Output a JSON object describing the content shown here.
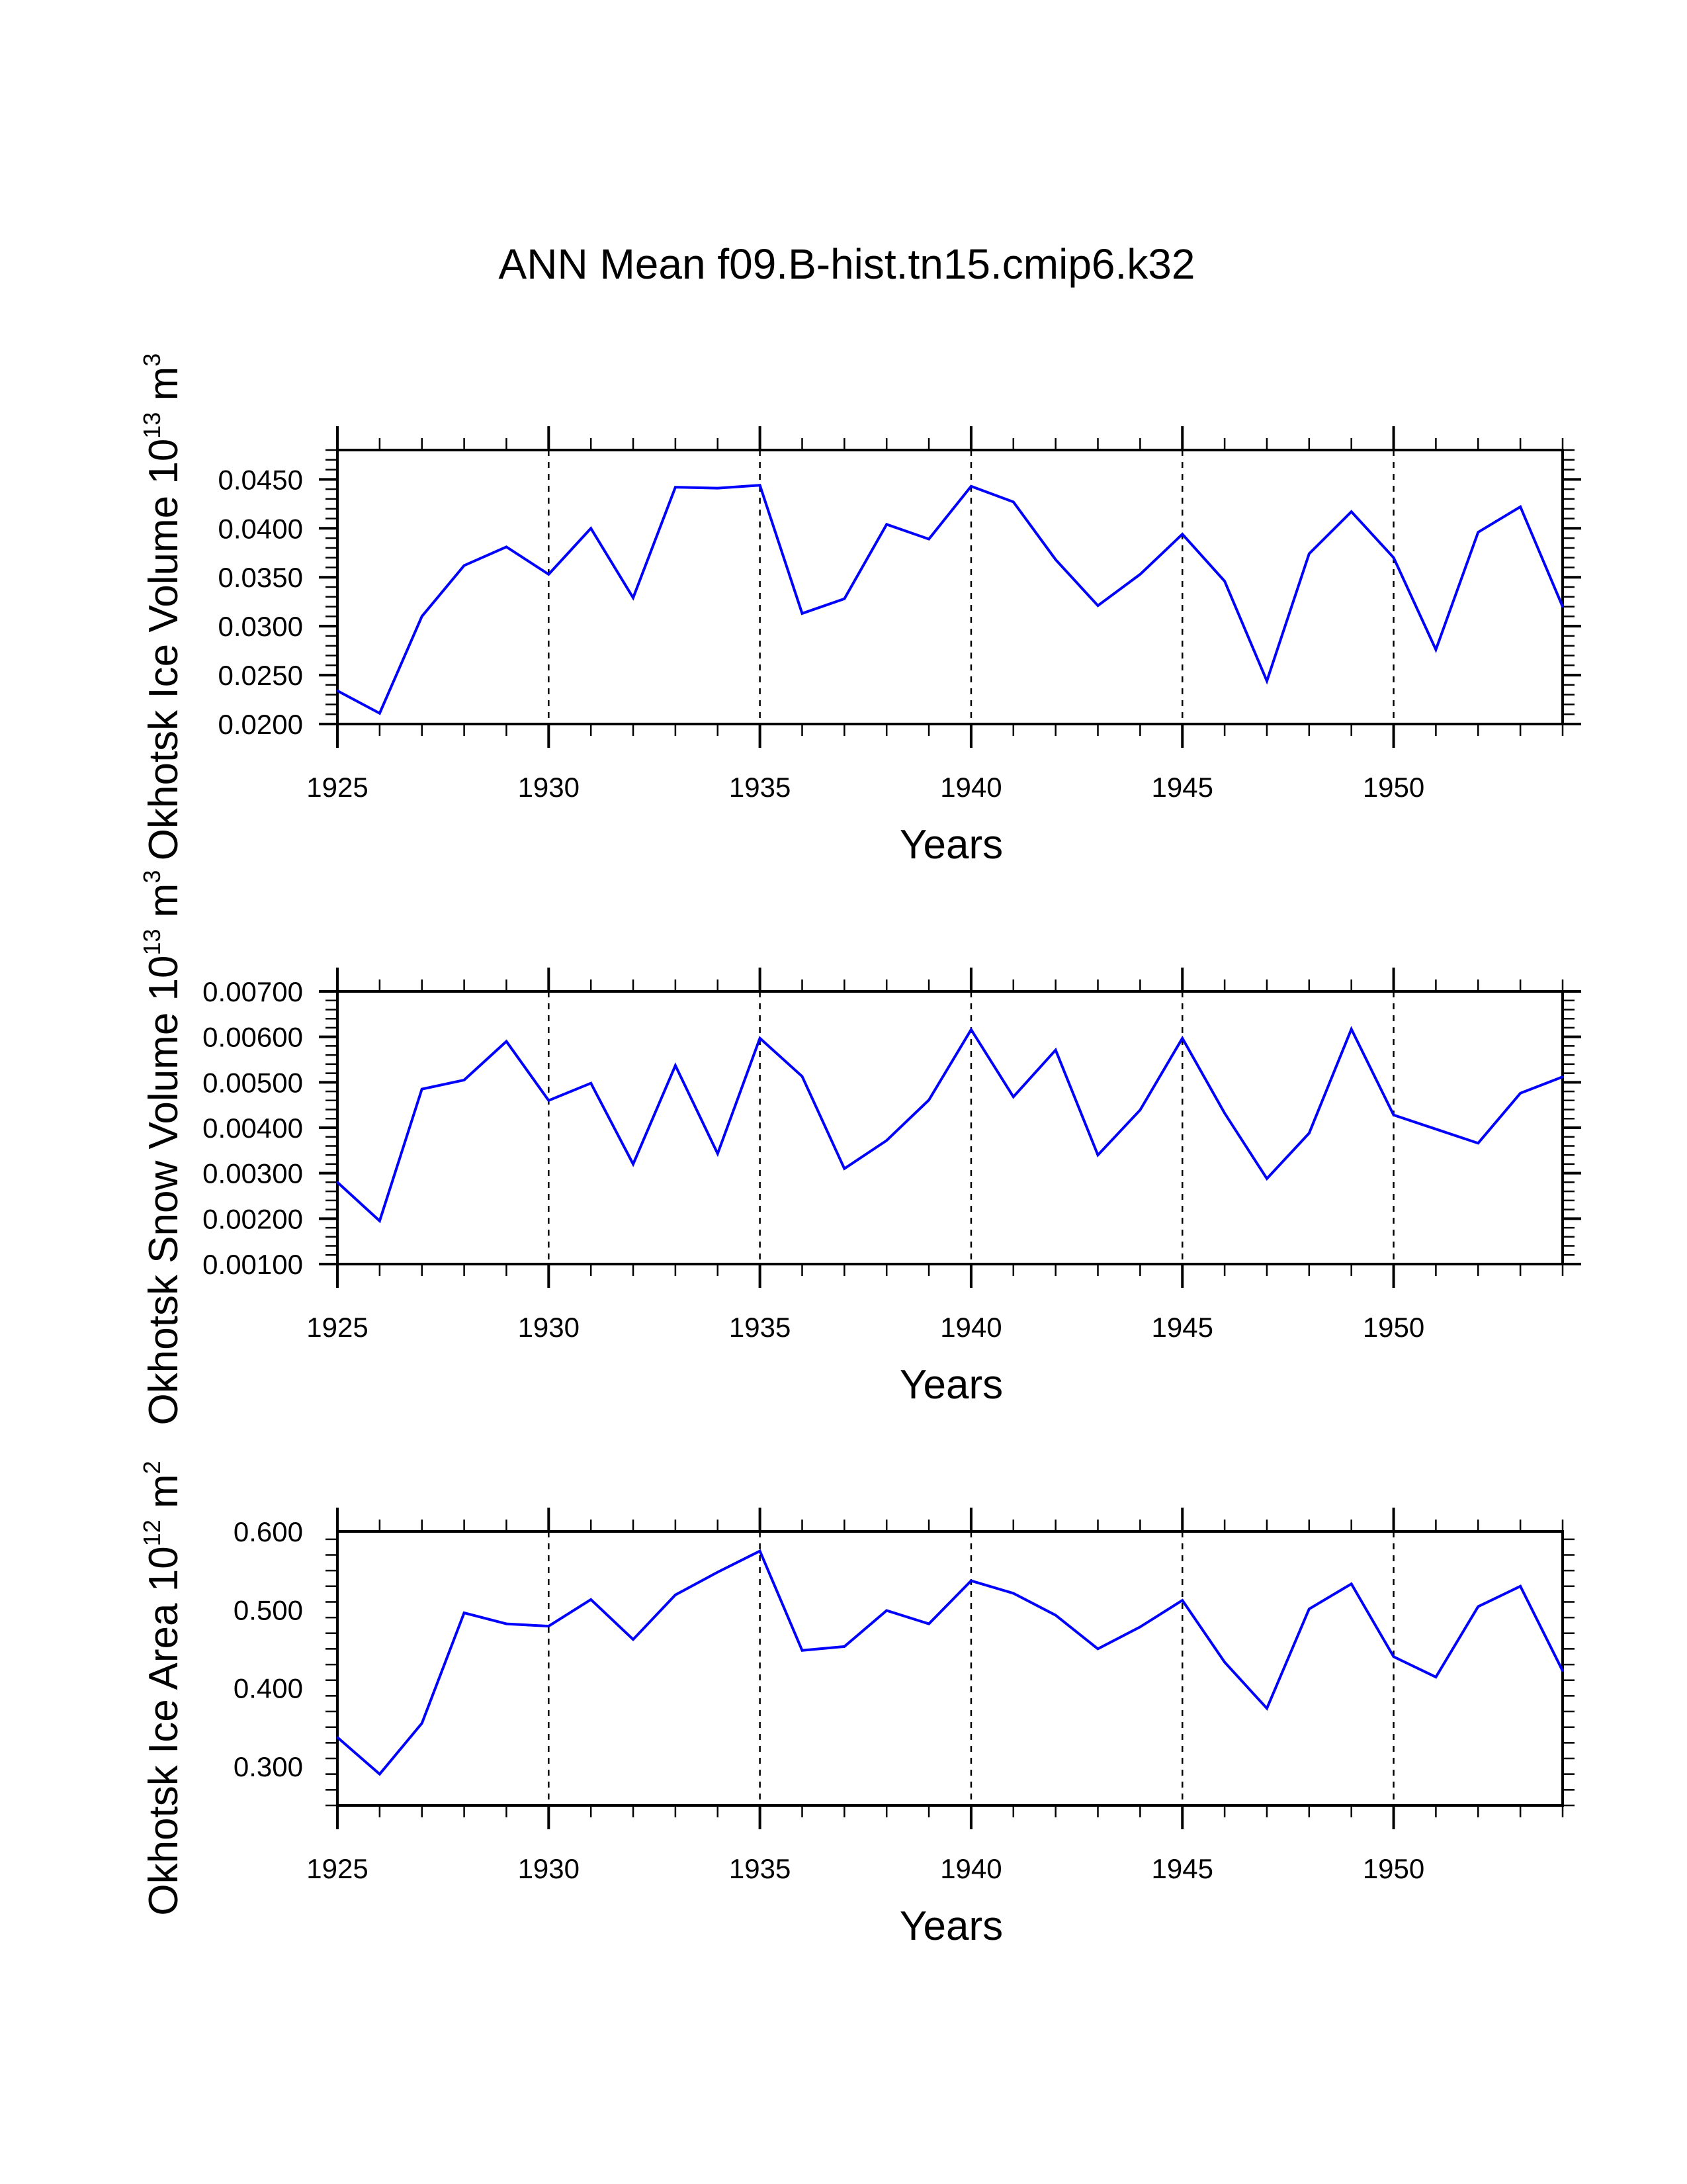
{
  "title": "ANN Mean f09.B-hist.tn15.cmip6.k32",
  "chart_data": [
    {
      "type": "line",
      "title": "ANN Mean f09.B-hist.tn15.cmip6.k32",
      "xlabel": "Years",
      "ylabel": {
        "text": "Okhotsk Ice Volume 10",
        "exp": "13",
        "unit": " m",
        "unit_exp": "3"
      },
      "xlim": [
        1925,
        1954
      ],
      "ylim": [
        0.02,
        0.048
      ],
      "xticks": [
        1925,
        1930,
        1935,
        1940,
        1945,
        1950
      ],
      "xtick_labels": [
        "1925",
        "1930",
        "1935",
        "1940",
        "1945",
        "1950"
      ],
      "yticks": [
        0.02,
        0.025,
        0.03,
        0.035,
        0.04,
        0.045
      ],
      "ytick_labels": [
        "0.0200",
        "0.0250",
        "0.0300",
        "0.0350",
        "0.0400",
        "0.0450"
      ],
      "vlines": [
        1930,
        1935,
        1940,
        1945,
        1950
      ],
      "line_color": "#0000ff",
      "series": [
        {
          "name": "Okhotsk Ice Volume",
          "x": [
            1925,
            1926,
            1927,
            1928,
            1929,
            1930,
            1931,
            1932,
            1933,
            1934,
            1935,
            1936,
            1937,
            1938,
            1939,
            1940,
            1941,
            1942,
            1943,
            1944,
            1945,
            1946,
            1947,
            1948,
            1949,
            1950,
            1951,
            1952,
            1953,
            1954
          ],
          "values": [
            0.0234,
            0.0211,
            0.031,
            0.0362,
            0.0381,
            0.0353,
            0.04,
            0.0329,
            0.0442,
            0.0441,
            0.0444,
            0.0313,
            0.0328,
            0.0404,
            0.0389,
            0.0443,
            0.0427,
            0.0368,
            0.0321,
            0.0353,
            0.0394,
            0.0346,
            0.0244,
            0.0374,
            0.0417,
            0.037,
            0.0276,
            0.0396,
            0.0422,
            0.032
          ]
        }
      ]
    },
    {
      "type": "line",
      "xlabel": "Years",
      "ylabel": {
        "text": "Okhotsk Snow Volume 10",
        "exp": "13",
        "unit": " m",
        "unit_exp": "3"
      },
      "xlim": [
        1925,
        1954
      ],
      "ylim": [
        0.001,
        0.007
      ],
      "xticks": [
        1925,
        1930,
        1935,
        1940,
        1945,
        1950
      ],
      "xtick_labels": [
        "1925",
        "1930",
        "1935",
        "1940",
        "1945",
        "1950"
      ],
      "yticks": [
        0.001,
        0.002,
        0.003,
        0.004,
        0.005,
        0.006,
        0.007
      ],
      "ytick_labels": [
        "0.00100",
        "0.00200",
        "0.00300",
        "0.00400",
        "0.00500",
        "0.00600",
        "0.00700"
      ],
      "vlines": [
        1930,
        1935,
        1940,
        1945,
        1950
      ],
      "line_color": "#0000ff",
      "series": [
        {
          "name": "Okhotsk Snow Volume",
          "x": [
            1925,
            1926,
            1927,
            1928,
            1929,
            1930,
            1931,
            1932,
            1933,
            1934,
            1935,
            1936,
            1937,
            1938,
            1939,
            1940,
            1941,
            1942,
            1943,
            1944,
            1945,
            1946,
            1947,
            1948,
            1949,
            1950,
            1951,
            1952,
            1953,
            1954
          ],
          "values": [
            0.0028,
            0.00195,
            0.00485,
            0.00505,
            0.0059,
            0.0046,
            0.00498,
            0.0032,
            0.00537,
            0.00343,
            0.00597,
            0.00513,
            0.0031,
            0.00372,
            0.00461,
            0.00616,
            0.00468,
            0.00571,
            0.0034,
            0.00439,
            0.00597,
            0.00432,
            0.00288,
            0.00388,
            0.00617,
            0.00428,
            0.00397,
            0.00366,
            0.00476,
            0.00512
          ]
        }
      ]
    },
    {
      "type": "line",
      "xlabel": "Years",
      "ylabel": {
        "text": "Okhotsk Ice Area 10",
        "exp": "12",
        "unit": " m",
        "unit_exp": "2"
      },
      "xlim": [
        1925,
        1954
      ],
      "ylim": [
        0.25,
        0.6
      ],
      "xticks": [
        1925,
        1930,
        1935,
        1940,
        1945,
        1950
      ],
      "xtick_labels": [
        "1925",
        "1930",
        "1935",
        "1940",
        "1945",
        "1950"
      ],
      "yticks": [
        0.3,
        0.4,
        0.5,
        0.6
      ],
      "ytick_labels": [
        "0.300",
        "0.400",
        "0.500",
        "0.600"
      ],
      "vlines": [
        1930,
        1935,
        1940,
        1945,
        1950
      ],
      "line_color": "#0000ff",
      "series": [
        {
          "name": "Okhotsk Ice Area",
          "x": [
            1925,
            1926,
            1927,
            1928,
            1929,
            1930,
            1931,
            1932,
            1933,
            1934,
            1935,
            1936,
            1937,
            1938,
            1939,
            1940,
            1941,
            1942,
            1943,
            1944,
            1945,
            1946,
            1947,
            1948,
            1949,
            1950,
            1951,
            1952,
            1953,
            1954
          ],
          "values": [
            0.337,
            0.29,
            0.355,
            0.496,
            0.482,
            0.479,
            0.513,
            0.462,
            0.519,
            0.548,
            0.575,
            0.448,
            0.453,
            0.499,
            0.482,
            0.537,
            0.521,
            0.493,
            0.45,
            0.478,
            0.512,
            0.433,
            0.374,
            0.501,
            0.533,
            0.44,
            0.414,
            0.504,
            0.53,
            0.422
          ]
        }
      ]
    }
  ]
}
